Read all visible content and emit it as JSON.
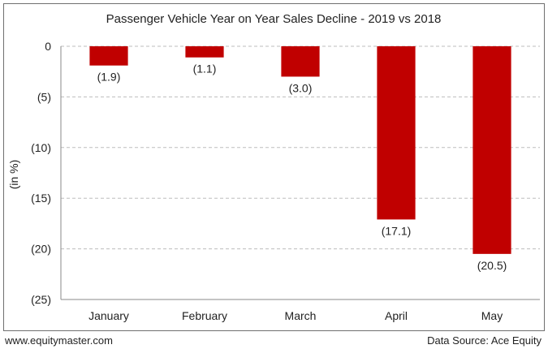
{
  "chart_data": {
    "type": "bar",
    "title": "Passenger Vehicle Year on Year Sales Decline - 2019 vs 2018",
    "ylabel": "(in %)",
    "xlabel": "",
    "categories": [
      "January",
      "February",
      "March",
      "April",
      "May"
    ],
    "values": [
      -1.9,
      -1.1,
      -3.0,
      -17.1,
      -20.5
    ],
    "data_labels": [
      "(1.9)",
      "(1.1)",
      "(3.0)",
      "(17.1)",
      "(20.5)"
    ],
    "ylim": [
      -25,
      0
    ],
    "yticks": [
      0,
      -5,
      -10,
      -15,
      -20,
      -25
    ],
    "ytick_labels": [
      "0",
      "(5)",
      "(10)",
      "(15)",
      "(20)",
      "(25)"
    ],
    "grid": true,
    "bar_color": "#c00000"
  },
  "footer": {
    "website": "www.equitymaster.com",
    "source": "Data Source: Ace Equity"
  }
}
